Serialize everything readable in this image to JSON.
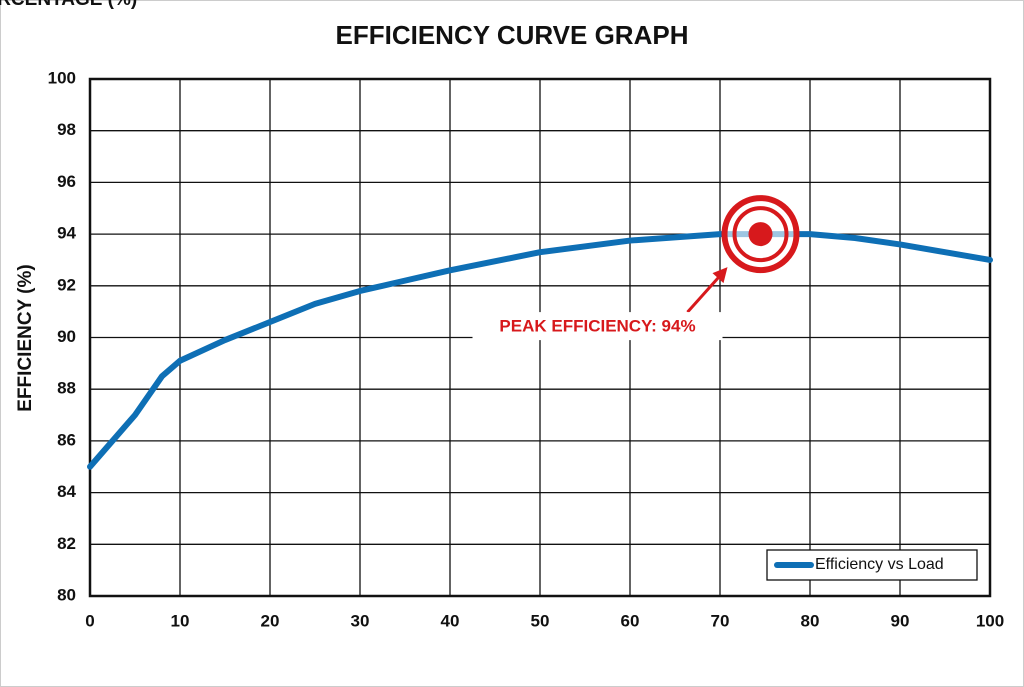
{
  "chart_data": {
    "type": "line",
    "title": "EFFICIENCY CURVE GRAPH",
    "x_label": "LOAD PERCENTAGE (%)",
    "y_label": "EFFICIENCY (%)",
    "x": [
      0,
      5,
      8,
      10,
      15,
      20,
      25,
      30,
      35,
      40,
      50,
      60,
      70,
      75,
      80,
      85,
      90,
      95,
      100
    ],
    "series": [
      {
        "name": "Efficiency vs Load",
        "color": "#0e6fb5",
        "values": [
          85,
          87,
          88.5,
          89.1,
          89.9,
          90.6,
          91.3,
          91.8,
          92.2,
          92.6,
          93.3,
          93.75,
          94,
          94,
          94,
          93.85,
          93.6,
          93.3,
          93
        ]
      }
    ],
    "peak": {
      "x": 74.5,
      "y": 94,
      "label": "PEAK EFFICIENCY: 94%",
      "color": "#d7191c"
    },
    "xlim": [
      0,
      100
    ],
    "xticks": [
      0,
      10,
      20,
      30,
      40,
      50,
      60,
      70,
      80,
      90,
      100
    ],
    "ylim": [
      80,
      100
    ],
    "yticks": [
      80,
      82,
      84,
      86,
      88,
      90,
      92,
      94,
      96,
      98,
      100
    ],
    "grid": true,
    "legend": "lower right"
  }
}
